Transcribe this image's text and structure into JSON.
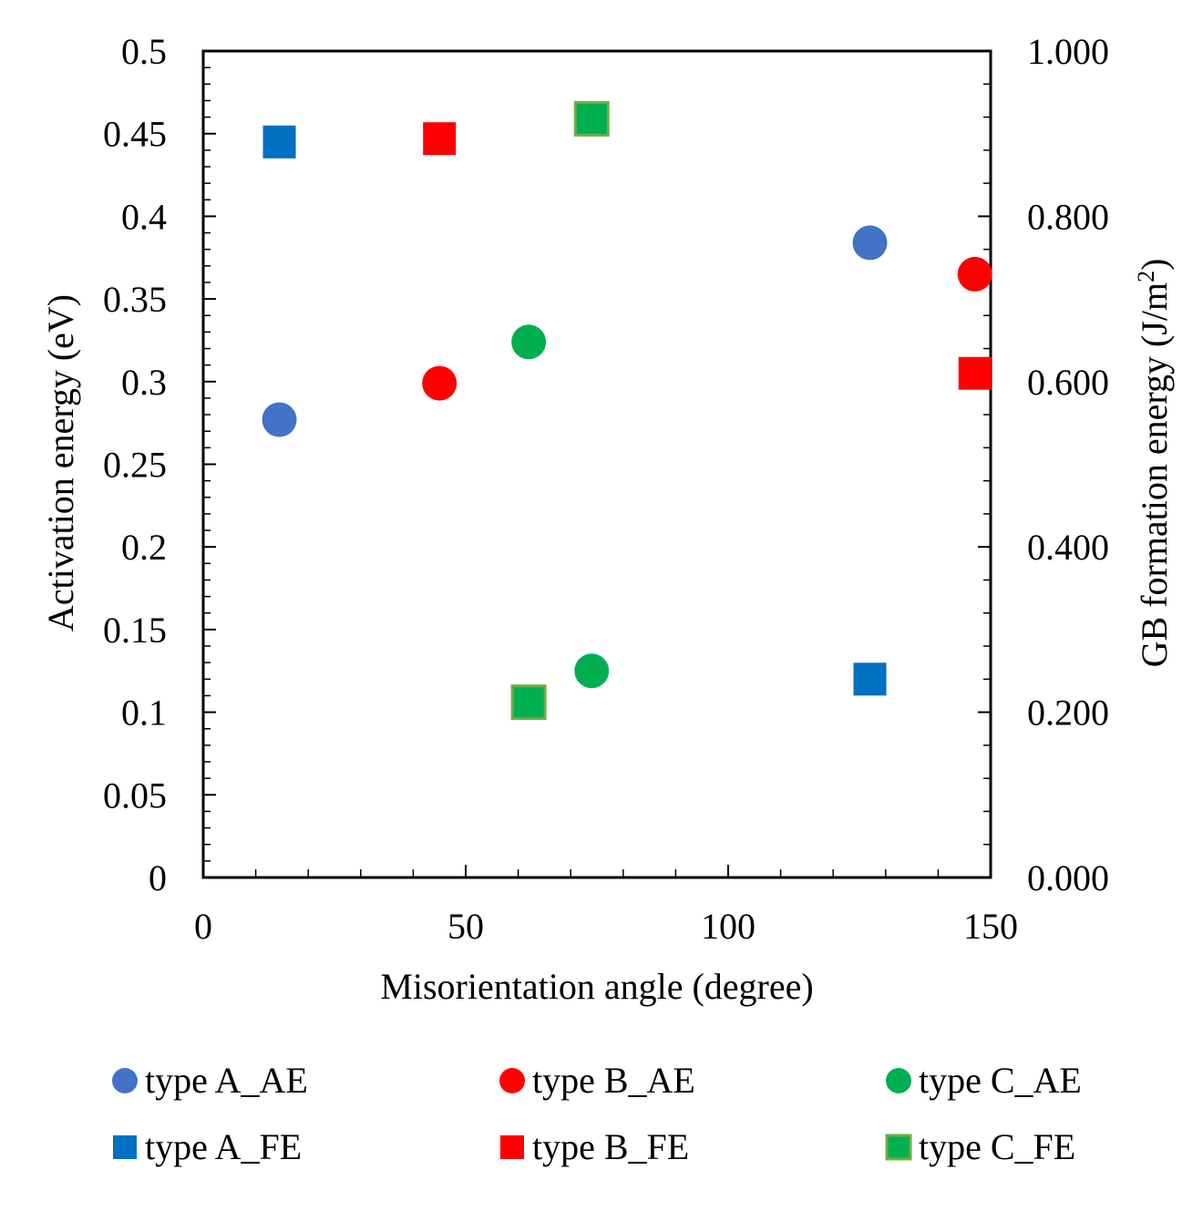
{
  "chart_data": {
    "type": "scatter",
    "xlabel": "Misorientation angle (degree)",
    "ylabel_left": "Activation energy (eV)",
    "ylabel_right_main": "GB formation energy (J/m",
    "ylabel_right_sup": "2",
    "ylabel_right_close": ")",
    "xlim": [
      0,
      150
    ],
    "ylim_left": [
      0,
      0.5
    ],
    "ylim_right": [
      0,
      1.0
    ],
    "x_ticks": [
      {
        "value": 0,
        "label": "0"
      },
      {
        "value": 50,
        "label": "50"
      },
      {
        "value": 100,
        "label": "100"
      },
      {
        "value": 150,
        "label": "150"
      }
    ],
    "y_left_ticks": [
      {
        "value": 0,
        "label": "0"
      },
      {
        "value": 0.05,
        "label": "0.05"
      },
      {
        "value": 0.1,
        "label": "0.1"
      },
      {
        "value": 0.15,
        "label": "0.15"
      },
      {
        "value": 0.2,
        "label": "0.2"
      },
      {
        "value": 0.25,
        "label": "0.25"
      },
      {
        "value": 0.3,
        "label": "0.3"
      },
      {
        "value": 0.35,
        "label": "0.35"
      },
      {
        "value": 0.4,
        "label": "0.4"
      },
      {
        "value": 0.45,
        "label": "0.45"
      },
      {
        "value": 0.5,
        "label": "0.5"
      }
    ],
    "y_right_ticks": [
      {
        "value": 0,
        "label": "0.000"
      },
      {
        "value": 0.2,
        "label": "0.200"
      },
      {
        "value": 0.4,
        "label": "0.400"
      },
      {
        "value": 0.6,
        "label": "0.600"
      },
      {
        "value": 0.8,
        "label": "0.800"
      },
      {
        "value": 1.0,
        "label": "1.000"
      }
    ],
    "grid": false,
    "legend_position": "bottom",
    "series": [
      {
        "name": "type A_AE",
        "marker": "circle",
        "axis": "left",
        "color": "#4472C4",
        "points": [
          {
            "x": 14.5,
            "y": 0.277
          },
          {
            "x": 127,
            "y": 0.384
          }
        ]
      },
      {
        "name": "type B_AE",
        "marker": "circle",
        "axis": "left",
        "color": "#FF0000",
        "points": [
          {
            "x": 45,
            "y": 0.299
          },
          {
            "x": 147,
            "y": 0.365
          }
        ]
      },
      {
        "name": "type C_AE",
        "marker": "circle",
        "axis": "left",
        "color": "#00B050",
        "points": [
          {
            "x": 62,
            "y": 0.324
          },
          {
            "x": 74,
            "y": 0.125
          }
        ]
      },
      {
        "name": "type A_FE",
        "marker": "square",
        "axis": "right",
        "color": "#0070C0",
        "points": [
          {
            "x": 14.5,
            "y": 0.89
          },
          {
            "x": 127,
            "y": 0.24
          }
        ]
      },
      {
        "name": "type B_FE",
        "marker": "square",
        "axis": "right",
        "color": "#FF0000",
        "points": [
          {
            "x": 45,
            "y": 0.894
          },
          {
            "x": 147,
            "y": 0.61
          }
        ]
      },
      {
        "name": "type C_FE",
        "marker": "square",
        "axis": "right",
        "color": "#00B050",
        "edge_color": "#70AD47",
        "points": [
          {
            "x": 62,
            "y": 0.212
          },
          {
            "x": 74,
            "y": 0.918
          }
        ]
      }
    ]
  }
}
